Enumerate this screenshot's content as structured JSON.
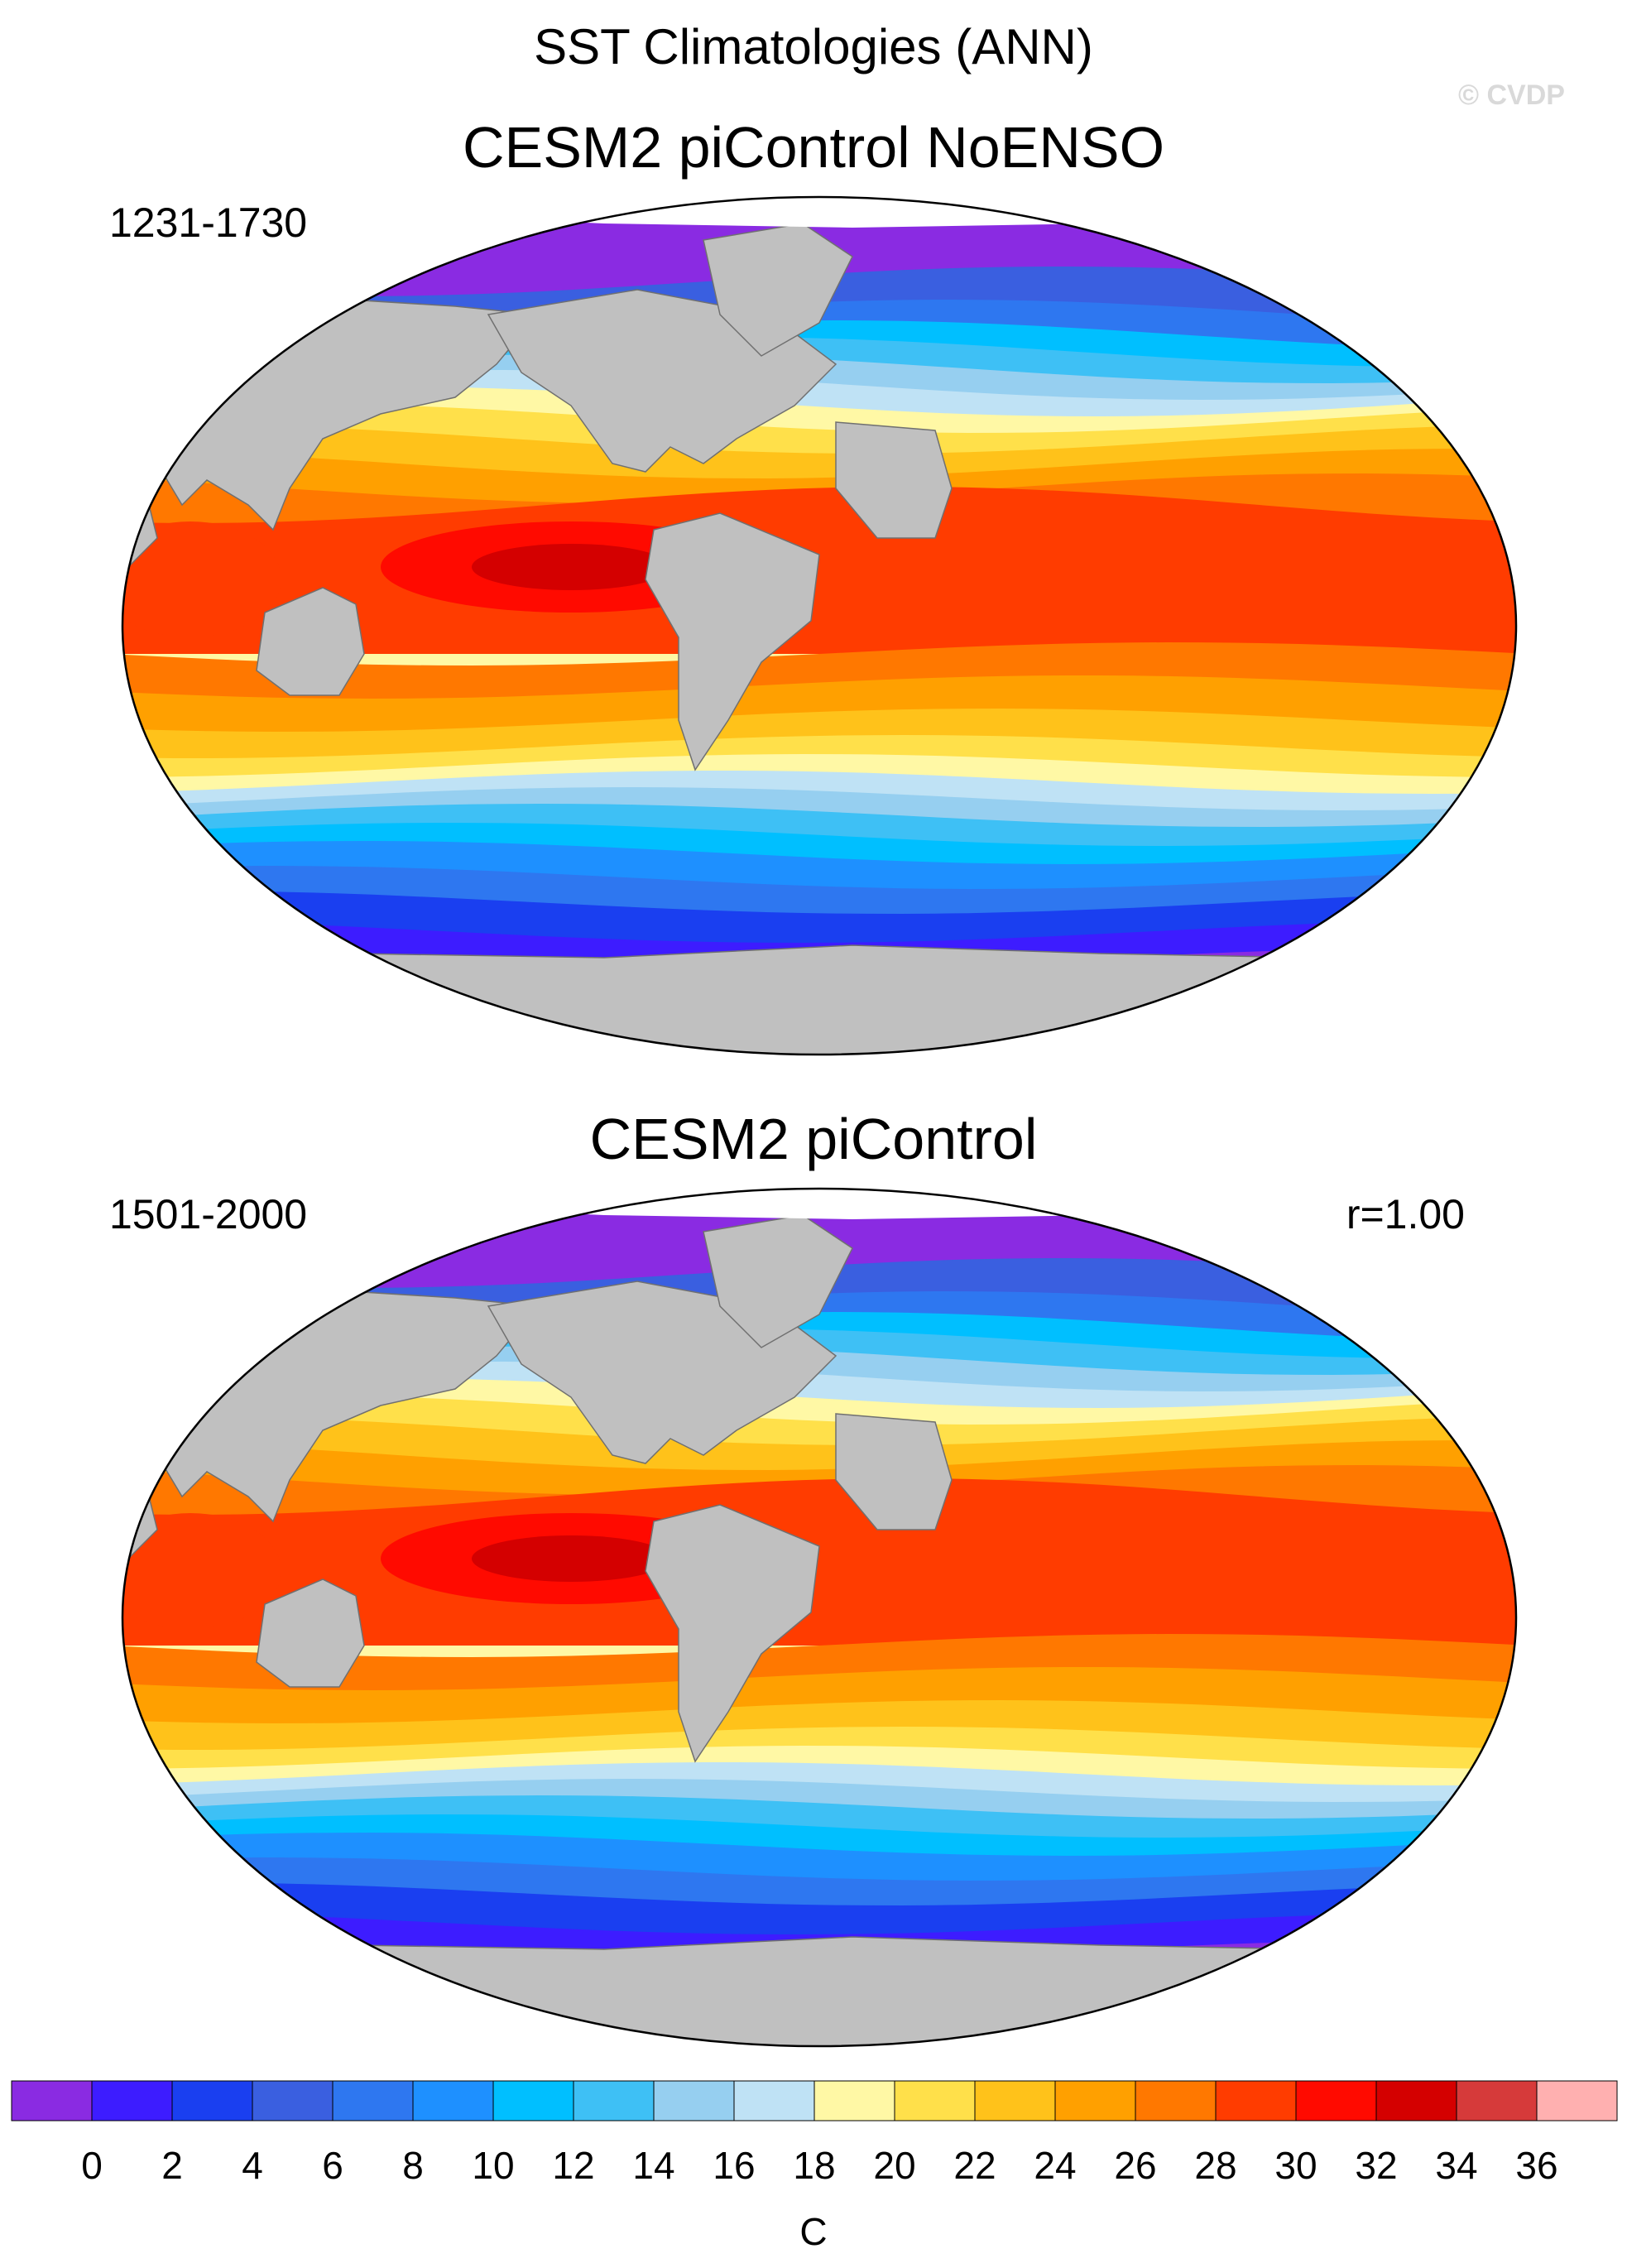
{
  "figure": {
    "title": "SST Climatologies (ANN)",
    "watermark": "© CVDP"
  },
  "panels": [
    {
      "model": "CESM2 piControl NoENSO",
      "years": "1231-1730",
      "correlation": ""
    },
    {
      "model": "CESM2 piControl",
      "years": "1501-2000",
      "correlation": "r=1.00"
    }
  ],
  "colorbar": {
    "units": "C",
    "labels": [
      "0",
      "2",
      "4",
      "6",
      "8",
      "10",
      "12",
      "14",
      "16",
      "18",
      "20",
      "22",
      "24",
      "26",
      "28",
      "30",
      "32",
      "34",
      "36"
    ],
    "colors": [
      "#8a2be2",
      "#3d1cff",
      "#1a3ff0",
      "#3a5fe0",
      "#2e77f0",
      "#1e90ff",
      "#00bfff",
      "#3ec0f5",
      "#96cff0",
      "#bfe2f5",
      "#fff8a5",
      "#ffe04a",
      "#ffc21a",
      "#ffa000",
      "#ff7800",
      "#ff3c00",
      "#ff0a00",
      "#d40000",
      "#d63a3a",
      "#ffb0b0"
    ]
  },
  "map_colors": {
    "land": "#c0c0c0",
    "ice": "#ffffff"
  }
}
